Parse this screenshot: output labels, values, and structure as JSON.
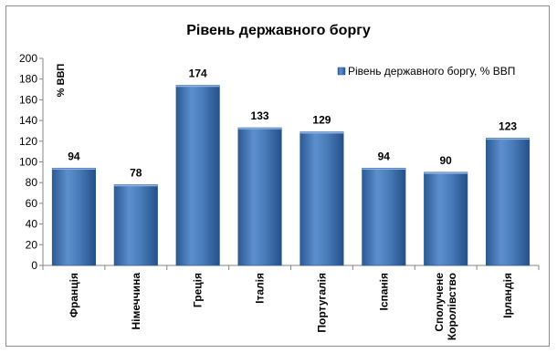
{
  "chart_data": {
    "type": "bar",
    "title": "Рівень державного боргу",
    "ylabel": "% ВВП",
    "xlabel": "",
    "categories": [
      "Франція",
      "Німеччина",
      "Греція",
      "Італія",
      "Португалія",
      "Іспанія",
      "Сполучене Королівство",
      "Ірландія"
    ],
    "category_lines": [
      [
        "Франція"
      ],
      [
        "Німеччина"
      ],
      [
        "Греція"
      ],
      [
        "Італія"
      ],
      [
        "Португалія"
      ],
      [
        "Іспанія"
      ],
      [
        "Сполучене",
        "Королівство"
      ],
      [
        "Ірландія"
      ]
    ],
    "series": [
      {
        "name": "Рівень державного боргу, % ВВП",
        "values": [
          94,
          78,
          174,
          133,
          129,
          94,
          90,
          123
        ]
      }
    ],
    "ylim": [
      0,
      200
    ],
    "yticks": [
      0,
      20,
      40,
      60,
      80,
      100,
      120,
      140,
      160,
      180,
      200
    ],
    "grid": false,
    "legend": "top-right",
    "colors": {
      "bar": "#4a7ebb",
      "bar_dark": "#2c5a93",
      "bar_light": "#6b9bd6"
    }
  }
}
